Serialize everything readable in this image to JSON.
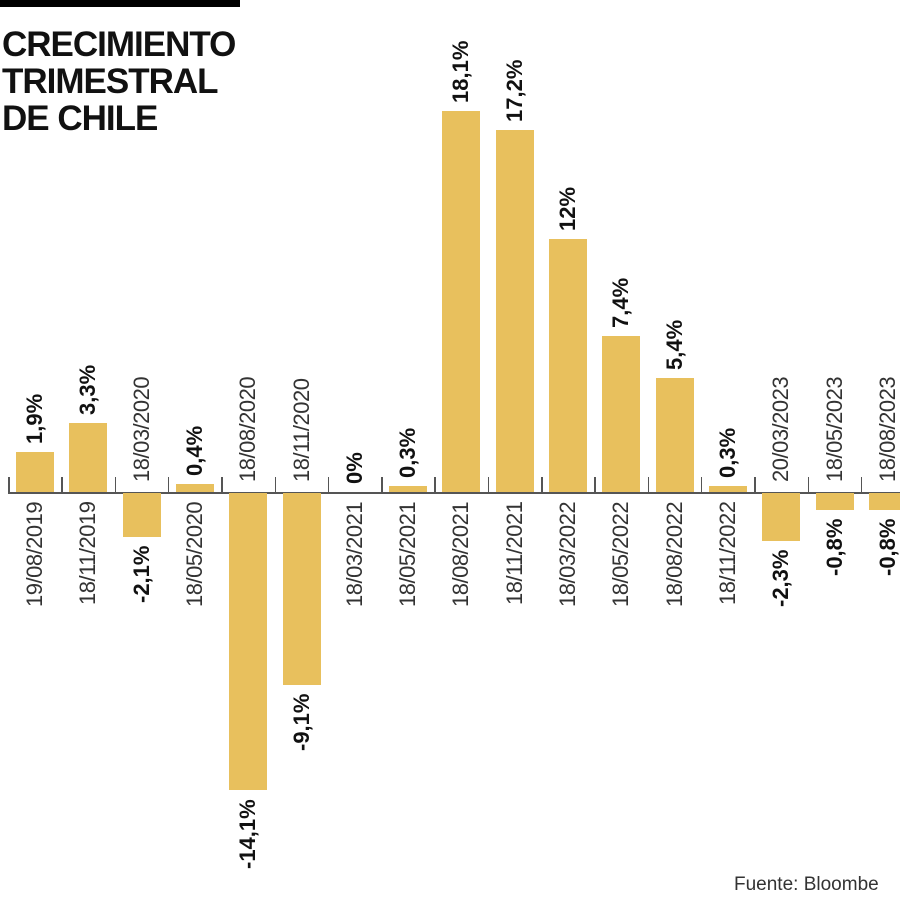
{
  "header": {
    "title_lines": [
      "CRECIMIENTO",
      "TRIMESTRAL",
      "DE CHILE"
    ]
  },
  "footer": {
    "source": "Fuente: Bloombe"
  },
  "colors": {
    "bar": "#E8C05D",
    "axis": "#555555",
    "text": "#111111"
  },
  "chart_data": {
    "type": "bar",
    "title": "CRECIMIENTO TRIMESTRAL DE CHILE",
    "xlabel": "",
    "ylabel": "",
    "categories": [
      "19/08/2019",
      "18/11/2019",
      "18/03/2020",
      "18/05/2020",
      "18/08/2020",
      "18/11/2020",
      "18/03/2021",
      "18/05/2021",
      "18/08/2021",
      "18/11/2021",
      "18/03/2022",
      "18/05/2022",
      "18/08/2022",
      "18/11/2022",
      "20/03/2023",
      "18/05/2023",
      "18/08/2023"
    ],
    "values": [
      1.9,
      3.3,
      -2.1,
      0.4,
      -14.1,
      -9.1,
      0,
      0.3,
      18.1,
      17.2,
      12,
      7.4,
      5.4,
      0.3,
      -2.3,
      -0.8,
      -0.8
    ],
    "value_labels": [
      "1,9%",
      "3,3%",
      "-2,1%",
      "0,4%",
      "-14,1%",
      "-9,1%",
      "0%",
      "0,3%",
      "18,1%",
      "17,2%",
      "12%",
      "7,4%",
      "5,4%",
      "0,3%",
      "-2,3%",
      "-0,8%",
      "-0,8%"
    ],
    "ylim": [
      -15,
      19
    ],
    "grid": false,
    "legend": null,
    "source": "Fuente: Bloombe"
  }
}
